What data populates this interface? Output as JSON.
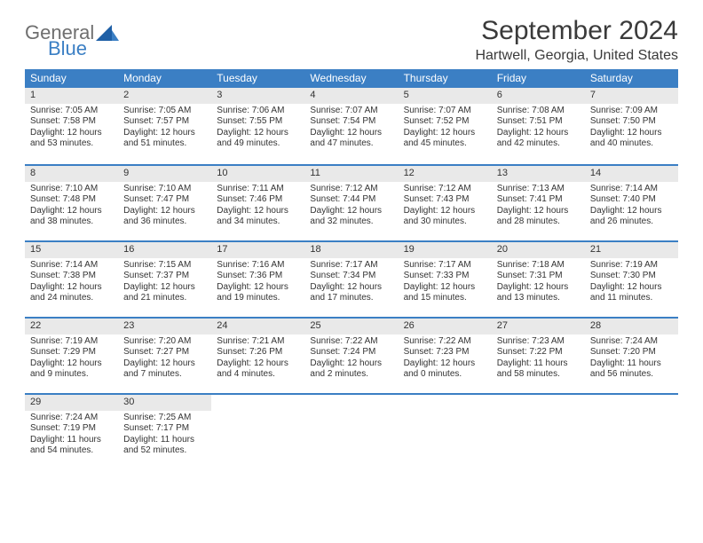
{
  "logo": {
    "part1": "General",
    "part2": "Blue",
    "text_color_gray": "#6f6f6f",
    "text_color_blue": "#3b7fc4",
    "fontsize": 22
  },
  "header": {
    "title": "September 2024",
    "title_fontsize": 30,
    "location": "Hartwell, Georgia, United States",
    "location_fontsize": 16,
    "text_color": "#3a3a3a"
  },
  "calendar": {
    "header_bg": "#3b7fc4",
    "header_text_color": "#ffffff",
    "header_fontsize": 12,
    "daynum_bg": "#e9e9e9",
    "row_border_color": "#3b7fc4",
    "cell_fontsize": 10,
    "daynum_fontsize": 11,
    "weekdays": [
      "Sunday",
      "Monday",
      "Tuesday",
      "Wednesday",
      "Thursday",
      "Friday",
      "Saturday"
    ],
    "days": [
      {
        "n": "1",
        "sunrise": "Sunrise: 7:05 AM",
        "sunset": "Sunset: 7:58 PM",
        "day1": "Daylight: 12 hours",
        "day2": "and 53 minutes."
      },
      {
        "n": "2",
        "sunrise": "Sunrise: 7:05 AM",
        "sunset": "Sunset: 7:57 PM",
        "day1": "Daylight: 12 hours",
        "day2": "and 51 minutes."
      },
      {
        "n": "3",
        "sunrise": "Sunrise: 7:06 AM",
        "sunset": "Sunset: 7:55 PM",
        "day1": "Daylight: 12 hours",
        "day2": "and 49 minutes."
      },
      {
        "n": "4",
        "sunrise": "Sunrise: 7:07 AM",
        "sunset": "Sunset: 7:54 PM",
        "day1": "Daylight: 12 hours",
        "day2": "and 47 minutes."
      },
      {
        "n": "5",
        "sunrise": "Sunrise: 7:07 AM",
        "sunset": "Sunset: 7:52 PM",
        "day1": "Daylight: 12 hours",
        "day2": "and 45 minutes."
      },
      {
        "n": "6",
        "sunrise": "Sunrise: 7:08 AM",
        "sunset": "Sunset: 7:51 PM",
        "day1": "Daylight: 12 hours",
        "day2": "and 42 minutes."
      },
      {
        "n": "7",
        "sunrise": "Sunrise: 7:09 AM",
        "sunset": "Sunset: 7:50 PM",
        "day1": "Daylight: 12 hours",
        "day2": "and 40 minutes."
      },
      {
        "n": "8",
        "sunrise": "Sunrise: 7:10 AM",
        "sunset": "Sunset: 7:48 PM",
        "day1": "Daylight: 12 hours",
        "day2": "and 38 minutes."
      },
      {
        "n": "9",
        "sunrise": "Sunrise: 7:10 AM",
        "sunset": "Sunset: 7:47 PM",
        "day1": "Daylight: 12 hours",
        "day2": "and 36 minutes."
      },
      {
        "n": "10",
        "sunrise": "Sunrise: 7:11 AM",
        "sunset": "Sunset: 7:46 PM",
        "day1": "Daylight: 12 hours",
        "day2": "and 34 minutes."
      },
      {
        "n": "11",
        "sunrise": "Sunrise: 7:12 AM",
        "sunset": "Sunset: 7:44 PM",
        "day1": "Daylight: 12 hours",
        "day2": "and 32 minutes."
      },
      {
        "n": "12",
        "sunrise": "Sunrise: 7:12 AM",
        "sunset": "Sunset: 7:43 PM",
        "day1": "Daylight: 12 hours",
        "day2": "and 30 minutes."
      },
      {
        "n": "13",
        "sunrise": "Sunrise: 7:13 AM",
        "sunset": "Sunset: 7:41 PM",
        "day1": "Daylight: 12 hours",
        "day2": "and 28 minutes."
      },
      {
        "n": "14",
        "sunrise": "Sunrise: 7:14 AM",
        "sunset": "Sunset: 7:40 PM",
        "day1": "Daylight: 12 hours",
        "day2": "and 26 minutes."
      },
      {
        "n": "15",
        "sunrise": "Sunrise: 7:14 AM",
        "sunset": "Sunset: 7:38 PM",
        "day1": "Daylight: 12 hours",
        "day2": "and 24 minutes."
      },
      {
        "n": "16",
        "sunrise": "Sunrise: 7:15 AM",
        "sunset": "Sunset: 7:37 PM",
        "day1": "Daylight: 12 hours",
        "day2": "and 21 minutes."
      },
      {
        "n": "17",
        "sunrise": "Sunrise: 7:16 AM",
        "sunset": "Sunset: 7:36 PM",
        "day1": "Daylight: 12 hours",
        "day2": "and 19 minutes."
      },
      {
        "n": "18",
        "sunrise": "Sunrise: 7:17 AM",
        "sunset": "Sunset: 7:34 PM",
        "day1": "Daylight: 12 hours",
        "day2": "and 17 minutes."
      },
      {
        "n": "19",
        "sunrise": "Sunrise: 7:17 AM",
        "sunset": "Sunset: 7:33 PM",
        "day1": "Daylight: 12 hours",
        "day2": "and 15 minutes."
      },
      {
        "n": "20",
        "sunrise": "Sunrise: 7:18 AM",
        "sunset": "Sunset: 7:31 PM",
        "day1": "Daylight: 12 hours",
        "day2": "and 13 minutes."
      },
      {
        "n": "21",
        "sunrise": "Sunrise: 7:19 AM",
        "sunset": "Sunset: 7:30 PM",
        "day1": "Daylight: 12 hours",
        "day2": "and 11 minutes."
      },
      {
        "n": "22",
        "sunrise": "Sunrise: 7:19 AM",
        "sunset": "Sunset: 7:29 PM",
        "day1": "Daylight: 12 hours",
        "day2": "and 9 minutes."
      },
      {
        "n": "23",
        "sunrise": "Sunrise: 7:20 AM",
        "sunset": "Sunset: 7:27 PM",
        "day1": "Daylight: 12 hours",
        "day2": "and 7 minutes."
      },
      {
        "n": "24",
        "sunrise": "Sunrise: 7:21 AM",
        "sunset": "Sunset: 7:26 PM",
        "day1": "Daylight: 12 hours",
        "day2": "and 4 minutes."
      },
      {
        "n": "25",
        "sunrise": "Sunrise: 7:22 AM",
        "sunset": "Sunset: 7:24 PM",
        "day1": "Daylight: 12 hours",
        "day2": "and 2 minutes."
      },
      {
        "n": "26",
        "sunrise": "Sunrise: 7:22 AM",
        "sunset": "Sunset: 7:23 PM",
        "day1": "Daylight: 12 hours",
        "day2": "and 0 minutes."
      },
      {
        "n": "27",
        "sunrise": "Sunrise: 7:23 AM",
        "sunset": "Sunset: 7:22 PM",
        "day1": "Daylight: 11 hours",
        "day2": "and 58 minutes."
      },
      {
        "n": "28",
        "sunrise": "Sunrise: 7:24 AM",
        "sunset": "Sunset: 7:20 PM",
        "day1": "Daylight: 11 hours",
        "day2": "and 56 minutes."
      },
      {
        "n": "29",
        "sunrise": "Sunrise: 7:24 AM",
        "sunset": "Sunset: 7:19 PM",
        "day1": "Daylight: 11 hours",
        "day2": "and 54 minutes."
      },
      {
        "n": "30",
        "sunrise": "Sunrise: 7:25 AM",
        "sunset": "Sunset: 7:17 PM",
        "day1": "Daylight: 11 hours",
        "day2": "and 52 minutes."
      }
    ]
  }
}
